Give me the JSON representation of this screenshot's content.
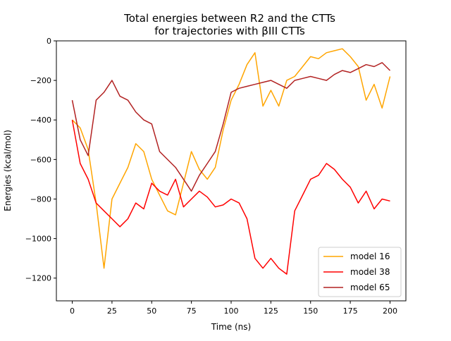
{
  "chart_data": {
    "type": "line",
    "title_line1": "Total energies between R2 and the CTTs",
    "title_line2": "for trajectories with βIII CTTs",
    "xlabel": "Time (ns)",
    "ylabel": "Energies (kcal/mol)",
    "xlim": [
      -10,
      210
    ],
    "ylim": [
      -1315,
      0
    ],
    "x_ticks": [
      0,
      25,
      50,
      75,
      100,
      125,
      150,
      175,
      200
    ],
    "x_tick_labels": [
      "0",
      "25",
      "50",
      "75",
      "100",
      "125",
      "150",
      "175",
      "200"
    ],
    "y_ticks": [
      0,
      -200,
      -400,
      -600,
      -800,
      -1000,
      -1200
    ],
    "y_tick_labels": [
      "0",
      "−200",
      "−400",
      "−600",
      "−800",
      "−1000",
      "−1200"
    ],
    "grid": false,
    "legend_position": "lower-right",
    "series": [
      {
        "name": "model 16",
        "color": "#FFA500",
        "x": [
          0,
          5,
          10,
          15,
          20,
          25,
          30,
          35,
          40,
          45,
          50,
          55,
          60,
          65,
          70,
          75,
          80,
          85,
          90,
          95,
          100,
          105,
          110,
          115,
          120,
          125,
          130,
          135,
          140,
          145,
          150,
          155,
          160,
          165,
          170,
          175,
          180,
          185,
          190,
          195,
          200
        ],
        "y": [
          -400,
          -440,
          -550,
          -820,
          -1150,
          -800,
          -720,
          -640,
          -520,
          -560,
          -700,
          -780,
          -860,
          -880,
          -720,
          -560,
          -650,
          -700,
          -640,
          -450,
          -300,
          -220,
          -120,
          -60,
          -330,
          -250,
          -330,
          -200,
          -180,
          -130,
          -80,
          -90,
          -60,
          -50,
          -40,
          -80,
          -130,
          -300,
          -220,
          -340,
          -180
        ]
      },
      {
        "name": "model 38",
        "color": "#FF0000",
        "x": [
          0,
          5,
          10,
          15,
          20,
          25,
          30,
          35,
          40,
          45,
          50,
          55,
          60,
          65,
          70,
          75,
          80,
          85,
          90,
          95,
          100,
          105,
          110,
          115,
          120,
          125,
          130,
          135,
          140,
          145,
          150,
          155,
          160,
          165,
          170,
          175,
          180,
          185,
          190,
          195,
          200
        ],
        "y": [
          -400,
          -620,
          -700,
          -820,
          -860,
          -900,
          -940,
          -900,
          -820,
          -850,
          -720,
          -760,
          -780,
          -700,
          -840,
          -800,
          -760,
          -790,
          -840,
          -830,
          -800,
          -820,
          -900,
          -1100,
          -1150,
          -1100,
          -1150,
          -1180,
          -860,
          -780,
          -700,
          -680,
          -620,
          -650,
          -700,
          -740,
          -820,
          -760,
          -850,
          -800,
          -810
        ]
      },
      {
        "name": "model 65",
        "color": "#B22222",
        "x": [
          0,
          5,
          10,
          15,
          20,
          25,
          30,
          35,
          40,
          45,
          50,
          55,
          60,
          65,
          70,
          75,
          80,
          85,
          90,
          95,
          100,
          105,
          110,
          115,
          120,
          125,
          130,
          135,
          140,
          145,
          150,
          155,
          160,
          165,
          170,
          175,
          180,
          185,
          190,
          195,
          200
        ],
        "y": [
          -300,
          -500,
          -580,
          -300,
          -260,
          -200,
          -280,
          -300,
          -360,
          -400,
          -420,
          -560,
          -600,
          -640,
          -700,
          -760,
          -680,
          -620,
          -560,
          -420,
          -260,
          -240,
          -230,
          -220,
          -210,
          -200,
          -220,
          -240,
          -200,
          -190,
          -180,
          -190,
          -200,
          -170,
          -150,
          -160,
          -140,
          -120,
          -130,
          -110,
          -150
        ]
      }
    ]
  }
}
